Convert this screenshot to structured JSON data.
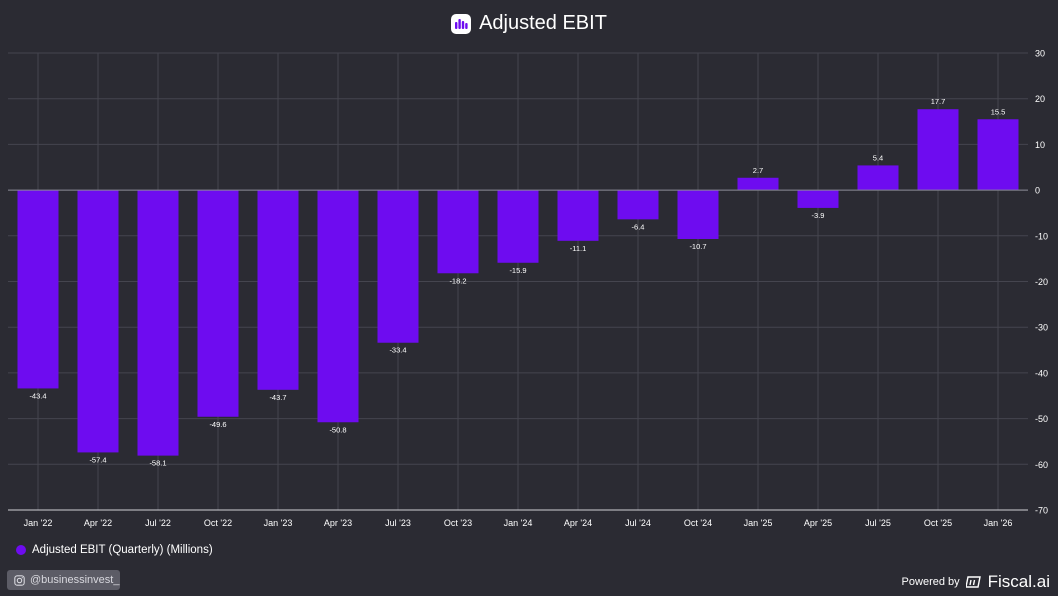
{
  "colors": {
    "bar": "#6e0cf0",
    "background": "#2b2b33",
    "grid": "#45454f",
    "axis_text": "#ffffff"
  },
  "chart_data": {
    "type": "bar",
    "title": "Adjusted EBIT",
    "xlabel": "",
    "ylabel": "",
    "ylim": [
      -70,
      30
    ],
    "yticks": [
      30,
      20,
      10,
      0,
      -10,
      -20,
      -30,
      -40,
      -50,
      -60,
      -70
    ],
    "categories": [
      "Jan '22",
      "Apr '22",
      "Jul '22",
      "Oct '22",
      "Jan '23",
      "Apr '23",
      "Jul '23",
      "Oct '23",
      "Jan '24",
      "Apr '24",
      "Jul '24",
      "Oct '24",
      "Jan '25",
      "Apr '25",
      "Jul '25",
      "Oct '25",
      "Jan '26"
    ],
    "series": [
      {
        "name": "Adjusted EBIT (Quarterly) (Millions)",
        "values": [
          -43.4,
          -57.4,
          -58.1,
          -49.6,
          -43.7,
          -50.8,
          -33.4,
          -18.2,
          -15.9,
          -11.1,
          -6.4,
          -10.7,
          2.7,
          -3.9,
          5.4,
          17.7,
          15.5
        ]
      }
    ],
    "legend": "bottom-left",
    "grid": true
  },
  "footer": {
    "handle": "@businessinvest_",
    "powered_by": "Powered by",
    "brand": "Fiscal.ai"
  },
  "icons": {
    "title_logo": "bar-chart-logo-icon",
    "instagram": "instagram-icon",
    "brand": "fiscal-logo-icon"
  }
}
